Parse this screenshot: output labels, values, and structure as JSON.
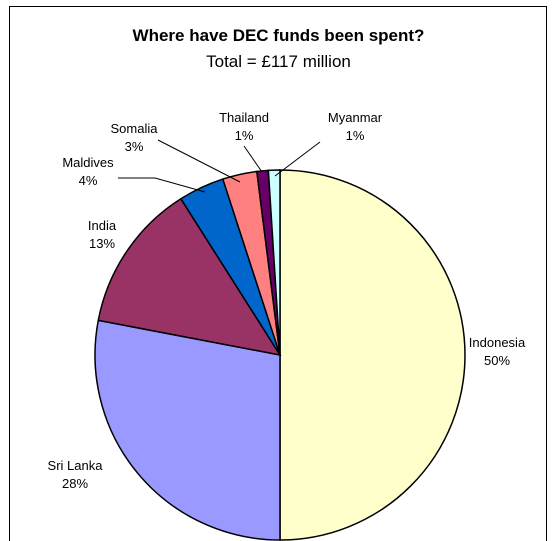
{
  "chart_data": {
    "type": "pie",
    "title": "Where have DEC funds been spent?",
    "subtitle": "Total = £117 million",
    "slices": [
      {
        "label": "Indonesia",
        "value": 50,
        "pct_label": "50%",
        "color": "#FFFFCC"
      },
      {
        "label": "Sri Lanka",
        "value": 28,
        "pct_label": "28%",
        "color": "#9999FF"
      },
      {
        "label": "India",
        "value": 13,
        "pct_label": "13%",
        "color": "#993366"
      },
      {
        "label": "Maldives",
        "value": 4,
        "pct_label": "4%",
        "color": "#0066CC"
      },
      {
        "label": "Somalia",
        "value": 3,
        "pct_label": "3%",
        "color": "#FF8080"
      },
      {
        "label": "Thailand",
        "value": 1,
        "pct_label": "1%",
        "color": "#660066"
      },
      {
        "label": "Myanmar",
        "value": 1,
        "pct_label": "1%",
        "color": "#CCFFFF"
      }
    ]
  }
}
